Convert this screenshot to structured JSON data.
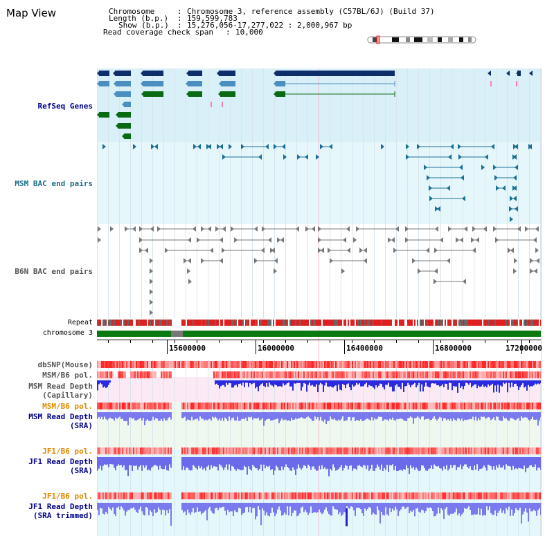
{
  "view_title": "Map View",
  "info": {
    "chromosome_label": "Chromosome",
    "chromosome_value": "Chromosome 3, reference assembly (C57BL/6J) (Build 37)",
    "length_label": "Length (b.p.)",
    "length_value": "159,599,783",
    "show_label": "Show (b.p.)",
    "show_value": "15,276,056-17,277,022 : 2,000,967 bp",
    "coverage_label": "Read coverage check span",
    "coverage_value": "10,000"
  },
  "tracks": {
    "refseq": "RefSeq Genes",
    "msm_bac": "MSM BAC end pairs",
    "b6n_bac": "B6N BAC end pairs",
    "repeat": "Repeat",
    "chromosome": "chromosome 3",
    "dbsnp": "dbSNP(Mouse)",
    "msm_b6_pol_1": "MSM/B6 pol.",
    "msm_depth_cap_1": "MSM Read Depth",
    "msm_depth_cap_2": "(Capillary)",
    "msm_b6_pol_2": "MSM/B6 pol.",
    "msm_depth_sra_1": "MSM Read Depth",
    "msm_depth_sra_2": "(SRA)",
    "jf1_b6_pol_1": "JF1/B6 pol.",
    "jf1_depth_sra_1": "JF1 Read Depth",
    "jf1_depth_sra_2": "(SRA)",
    "jf1_b6_pol_2": "JF1/B6 pol.",
    "jf1_depth_trim_1": "JF1 Read Depth",
    "jf1_depth_trim_2": "(SRA trimmed)"
  },
  "axis": {
    "ticks": [
      "15600000",
      "16000000",
      "16400000",
      "16800000",
      "17200000"
    ]
  },
  "colors": {
    "refseq_bg": "#d9f0f8",
    "msm_bg": "#e6f7fb",
    "b6n_bg": "#ffffff",
    "navy": "#0d2d6b",
    "steel": "#4a8fc0",
    "green": "#0a6a14",
    "teal": "#1a6f95",
    "gray": "#777777",
    "repeat_red": "#e02020",
    "chrom_green": "#0a7a10",
    "label_navy": "#00008b",
    "label_teal": "#1a6f8a",
    "label_orange": "#e08a00",
    "label_gray": "#555555"
  }
}
